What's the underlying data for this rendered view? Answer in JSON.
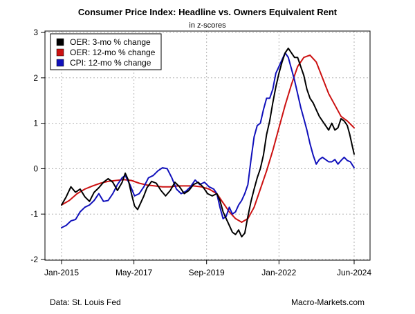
{
  "chart_data": {
    "type": "line",
    "title": "Consumer Price Index: Headline vs. Owners Equivalent Rent",
    "subtitle": "in z-scores",
    "xlabel": "",
    "ylabel": "",
    "x_range": [
      2015.0,
      2024.42
    ],
    "ylim": [
      -2,
      3
    ],
    "yticks": [
      -2,
      -1,
      0,
      1,
      2,
      3
    ],
    "xticks": [
      {
        "label": "Jan-2015",
        "t": 2015.0
      },
      {
        "label": "May-2017",
        "t": 2017.33
      },
      {
        "label": "Sep-2019",
        "t": 2019.67
      },
      {
        "label": "Jan-2022",
        "t": 2022.0
      },
      {
        "label": "Jun-2024",
        "t": 2024.42
      }
    ],
    "grid": true,
    "legend_position": "top-left",
    "series": [
      {
        "name": "OER: 3-mo % change",
        "color": "#000000",
        "points": [
          [
            2015.0,
            -0.8
          ],
          [
            2015.15,
            -0.62
          ],
          [
            2015.3,
            -0.4
          ],
          [
            2015.45,
            -0.52
          ],
          [
            2015.6,
            -0.45
          ],
          [
            2015.75,
            -0.62
          ],
          [
            2015.9,
            -0.72
          ],
          [
            2016.05,
            -0.52
          ],
          [
            2016.2,
            -0.42
          ],
          [
            2016.35,
            -0.3
          ],
          [
            2016.5,
            -0.22
          ],
          [
            2016.65,
            -0.3
          ],
          [
            2016.8,
            -0.48
          ],
          [
            2016.95,
            -0.3
          ],
          [
            2017.05,
            -0.1
          ],
          [
            2017.15,
            -0.25
          ],
          [
            2017.25,
            -0.55
          ],
          [
            2017.35,
            -0.82
          ],
          [
            2017.45,
            -0.9
          ],
          [
            2017.55,
            -0.75
          ],
          [
            2017.65,
            -0.6
          ],
          [
            2017.75,
            -0.42
          ],
          [
            2017.9,
            -0.28
          ],
          [
            2018.05,
            -0.32
          ],
          [
            2018.2,
            -0.48
          ],
          [
            2018.35,
            -0.6
          ],
          [
            2018.5,
            -0.48
          ],
          [
            2018.65,
            -0.3
          ],
          [
            2018.8,
            -0.4
          ],
          [
            2018.95,
            -0.55
          ],
          [
            2019.1,
            -0.48
          ],
          [
            2019.25,
            -0.35
          ],
          [
            2019.4,
            -0.3
          ],
          [
            2019.55,
            -0.4
          ],
          [
            2019.7,
            -0.55
          ],
          [
            2019.85,
            -0.6
          ],
          [
            2020.0,
            -0.55
          ],
          [
            2020.1,
            -0.7
          ],
          [
            2020.2,
            -0.95
          ],
          [
            2020.3,
            -1.1
          ],
          [
            2020.4,
            -1.25
          ],
          [
            2020.5,
            -1.4
          ],
          [
            2020.6,
            -1.45
          ],
          [
            2020.7,
            -1.35
          ],
          [
            2020.8,
            -1.5
          ],
          [
            2020.9,
            -1.42
          ],
          [
            2021.0,
            -1.05
          ],
          [
            2021.1,
            -0.72
          ],
          [
            2021.2,
            -0.45
          ],
          [
            2021.3,
            -0.2
          ],
          [
            2021.4,
            0.0
          ],
          [
            2021.5,
            0.3
          ],
          [
            2021.6,
            0.75
          ],
          [
            2021.7,
            1.05
          ],
          [
            2021.8,
            1.45
          ],
          [
            2021.9,
            1.8
          ],
          [
            2022.0,
            2.1
          ],
          [
            2022.1,
            2.35
          ],
          [
            2022.2,
            2.55
          ],
          [
            2022.3,
            2.65
          ],
          [
            2022.4,
            2.55
          ],
          [
            2022.5,
            2.45
          ],
          [
            2022.6,
            2.45
          ],
          [
            2022.7,
            2.25
          ],
          [
            2022.8,
            2.05
          ],
          [
            2022.9,
            1.75
          ],
          [
            2023.0,
            1.55
          ],
          [
            2023.1,
            1.45
          ],
          [
            2023.2,
            1.3
          ],
          [
            2023.3,
            1.15
          ],
          [
            2023.4,
            1.05
          ],
          [
            2023.5,
            0.95
          ],
          [
            2023.6,
            0.85
          ],
          [
            2023.7,
            1.0
          ],
          [
            2023.8,
            0.85
          ],
          [
            2023.9,
            0.9
          ],
          [
            2024.0,
            1.1
          ],
          [
            2024.1,
            1.05
          ],
          [
            2024.2,
            0.95
          ],
          [
            2024.28,
            0.75
          ],
          [
            2024.36,
            0.5
          ],
          [
            2024.42,
            0.32
          ]
        ]
      },
      {
        "name": "OER: 12-mo % change",
        "color": "#cc1111",
        "points": [
          [
            2015.0,
            -0.8
          ],
          [
            2015.25,
            -0.7
          ],
          [
            2015.5,
            -0.55
          ],
          [
            2015.75,
            -0.45
          ],
          [
            2016.0,
            -0.38
          ],
          [
            2016.25,
            -0.32
          ],
          [
            2016.5,
            -0.28
          ],
          [
            2016.75,
            -0.26
          ],
          [
            2017.0,
            -0.24
          ],
          [
            2017.25,
            -0.26
          ],
          [
            2017.5,
            -0.32
          ],
          [
            2017.75,
            -0.36
          ],
          [
            2018.0,
            -0.38
          ],
          [
            2018.25,
            -0.4
          ],
          [
            2018.5,
            -0.4
          ],
          [
            2018.75,
            -0.38
          ],
          [
            2019.0,
            -0.38
          ],
          [
            2019.25,
            -0.38
          ],
          [
            2019.5,
            -0.4
          ],
          [
            2019.75,
            -0.45
          ],
          [
            2020.0,
            -0.55
          ],
          [
            2020.2,
            -0.75
          ],
          [
            2020.4,
            -0.95
          ],
          [
            2020.6,
            -1.1
          ],
          [
            2020.8,
            -1.18
          ],
          [
            2021.0,
            -1.1
          ],
          [
            2021.2,
            -0.85
          ],
          [
            2021.4,
            -0.45
          ],
          [
            2021.6,
            -0.05
          ],
          [
            2021.8,
            0.4
          ],
          [
            2022.0,
            0.9
          ],
          [
            2022.2,
            1.4
          ],
          [
            2022.4,
            1.85
          ],
          [
            2022.6,
            2.25
          ],
          [
            2022.8,
            2.45
          ],
          [
            2023.0,
            2.5
          ],
          [
            2023.2,
            2.35
          ],
          [
            2023.4,
            2.0
          ],
          [
            2023.6,
            1.65
          ],
          [
            2023.8,
            1.4
          ],
          [
            2024.0,
            1.15
          ],
          [
            2024.2,
            1.05
          ],
          [
            2024.42,
            0.9
          ]
        ]
      },
      {
        "name": "CPI: 12-mo % change",
        "color": "#1010bb",
        "points": [
          [
            2015.0,
            -1.3
          ],
          [
            2015.15,
            -1.25
          ],
          [
            2015.3,
            -1.15
          ],
          [
            2015.45,
            -1.12
          ],
          [
            2015.6,
            -0.95
          ],
          [
            2015.75,
            -0.85
          ],
          [
            2015.9,
            -0.8
          ],
          [
            2016.05,
            -0.7
          ],
          [
            2016.2,
            -0.55
          ],
          [
            2016.35,
            -0.72
          ],
          [
            2016.5,
            -0.7
          ],
          [
            2016.65,
            -0.55
          ],
          [
            2016.8,
            -0.35
          ],
          [
            2016.95,
            -0.2
          ],
          [
            2017.05,
            -0.15
          ],
          [
            2017.2,
            -0.35
          ],
          [
            2017.35,
            -0.6
          ],
          [
            2017.5,
            -0.55
          ],
          [
            2017.65,
            -0.4
          ],
          [
            2017.8,
            -0.2
          ],
          [
            2017.95,
            -0.15
          ],
          [
            2018.1,
            -0.05
          ],
          [
            2018.25,
            0.02
          ],
          [
            2018.4,
            0.0
          ],
          [
            2018.55,
            -0.2
          ],
          [
            2018.7,
            -0.45
          ],
          [
            2018.85,
            -0.55
          ],
          [
            2019.0,
            -0.5
          ],
          [
            2019.15,
            -0.4
          ],
          [
            2019.3,
            -0.25
          ],
          [
            2019.45,
            -0.35
          ],
          [
            2019.6,
            -0.3
          ],
          [
            2019.75,
            -0.4
          ],
          [
            2019.9,
            -0.45
          ],
          [
            2020.0,
            -0.55
          ],
          [
            2020.1,
            -0.85
          ],
          [
            2020.2,
            -1.1
          ],
          [
            2020.3,
            -1.05
          ],
          [
            2020.4,
            -0.85
          ],
          [
            2020.5,
            -1.0
          ],
          [
            2020.6,
            -0.95
          ],
          [
            2020.7,
            -0.8
          ],
          [
            2020.8,
            -0.7
          ],
          [
            2020.9,
            -0.55
          ],
          [
            2021.0,
            -0.35
          ],
          [
            2021.1,
            0.2
          ],
          [
            2021.2,
            0.7
          ],
          [
            2021.3,
            0.95
          ],
          [
            2021.4,
            1.0
          ],
          [
            2021.5,
            1.3
          ],
          [
            2021.6,
            1.55
          ],
          [
            2021.7,
            1.55
          ],
          [
            2021.8,
            1.75
          ],
          [
            2021.9,
            2.1
          ],
          [
            2022.0,
            2.25
          ],
          [
            2022.1,
            2.4
          ],
          [
            2022.2,
            2.55
          ],
          [
            2022.3,
            2.45
          ],
          [
            2022.4,
            2.2
          ],
          [
            2022.5,
            1.95
          ],
          [
            2022.6,
            1.65
          ],
          [
            2022.7,
            1.35
          ],
          [
            2022.8,
            1.1
          ],
          [
            2022.9,
            0.85
          ],
          [
            2023.0,
            0.55
          ],
          [
            2023.1,
            0.3
          ],
          [
            2023.2,
            0.1
          ],
          [
            2023.3,
            0.2
          ],
          [
            2023.4,
            0.25
          ],
          [
            2023.5,
            0.2
          ],
          [
            2023.6,
            0.15
          ],
          [
            2023.7,
            0.15
          ],
          [
            2023.8,
            0.2
          ],
          [
            2023.9,
            0.1
          ],
          [
            2024.0,
            0.18
          ],
          [
            2024.1,
            0.25
          ],
          [
            2024.2,
            0.18
          ],
          [
            2024.3,
            0.15
          ],
          [
            2024.42,
            0.02
          ]
        ]
      }
    ]
  },
  "footer": {
    "source": "Data: St. Louis Fed",
    "credit": "Macro-Markets.com"
  }
}
